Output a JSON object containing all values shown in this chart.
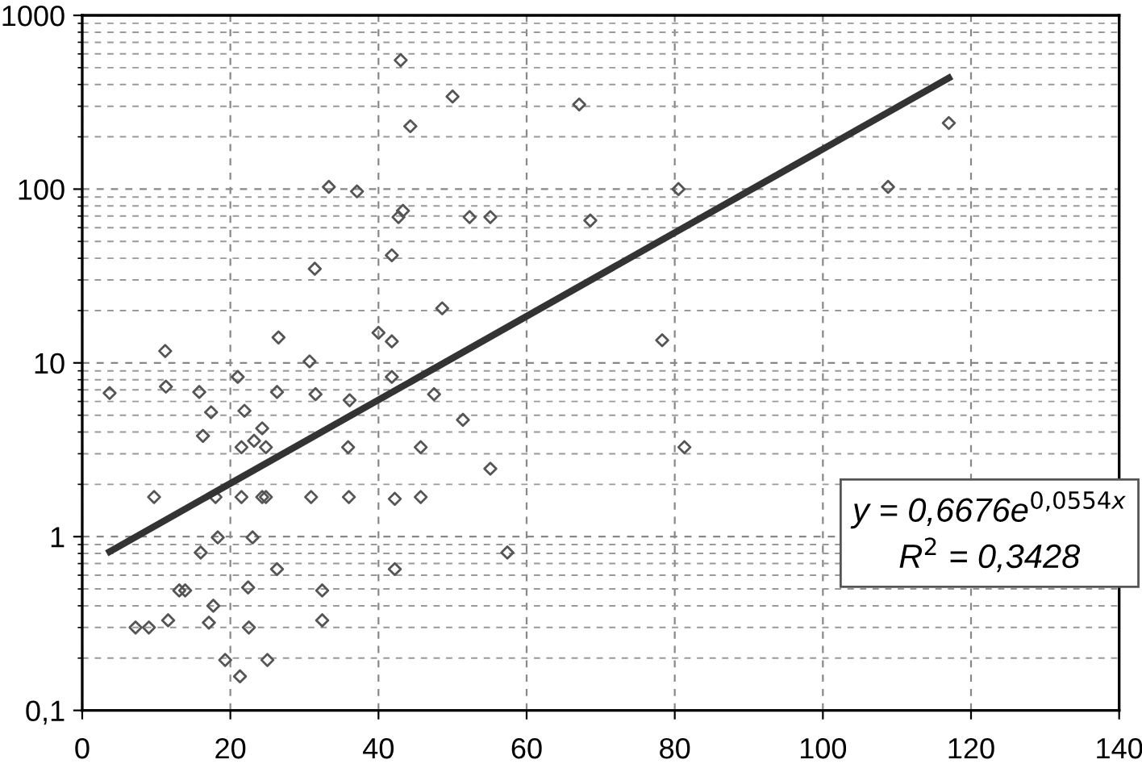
{
  "chart_data": {
    "type": "scatter",
    "xlim": [
      0,
      140
    ],
    "xticks": [
      0,
      20,
      40,
      60,
      80,
      100,
      120,
      140
    ],
    "ylim": [
      0.1,
      1000
    ],
    "yticks": [
      {
        "value": 0.1,
        "label": "0,1"
      },
      1,
      10,
      100,
      1000
    ],
    "log": "y",
    "grid": true,
    "annotations": [
      "y = 0,6676e$^{0,0554x}$",
      "R$^{2}$ = 0,3428"
    ],
    "series": [
      {
        "color": "#555555",
        "marker": "diamond",
        "x": [
          43.0,
          50.0,
          44.3,
          67.1,
          33.3,
          37.1,
          43.3,
          42.7,
          52.3,
          55.1,
          68.6,
          41.8,
          31.4,
          48.6,
          40.0,
          41.8,
          26.5,
          11.2,
          30.7,
          41.8,
          21.0,
          117.0,
          80.5,
          108.8,
          78.3,
          3.7,
          11.3,
          15.8,
          26.3,
          31.5,
          47.5,
          17.4,
          21.9,
          36.1,
          51.4,
          16.3,
          24.3,
          23.2,
          21.5,
          24.8,
          35.9,
          45.7,
          55.1,
          9.7,
          18.0,
          21.5,
          24.3,
          24.8,
          30.9,
          36.0,
          42.2,
          45.7,
          18.3,
          23.0,
          16.0,
          57.4,
          26.3,
          42.2,
          13.1,
          13.9,
          22.4,
          32.4,
          17.7,
          11.6,
          17.1,
          32.4,
          7.2,
          9.0,
          22.5,
          19.3,
          25.0,
          21.3,
          81.3
        ],
        "values": [
          552,
          341,
          230,
          307,
          103,
          97,
          75,
          69,
          69,
          69,
          66,
          41.6,
          34.8,
          20.6,
          14.9,
          13.3,
          14.0,
          11.7,
          10.2,
          8.3,
          8.3,
          240,
          100,
          103,
          13.5,
          6.7,
          7.3,
          6.8,
          6.8,
          6.6,
          6.6,
          5.2,
          5.3,
          6.1,
          4.7,
          3.8,
          4.2,
          3.56,
          3.27,
          3.27,
          3.27,
          3.27,
          2.46,
          1.69,
          1.69,
          1.69,
          1.69,
          1.69,
          1.69,
          1.69,
          1.65,
          1.69,
          0.99,
          0.99,
          0.81,
          0.81,
          0.65,
          0.65,
          0.49,
          0.49,
          0.51,
          0.49,
          0.4,
          0.33,
          0.32,
          0.33,
          0.3,
          0.3,
          0.3,
          0.195,
          0.195,
          0.157,
          3.27
        ]
      },
      {
        "type": "line",
        "color": "#333333",
        "line_style": "solid",
        "marker": "none",
        "x": [
          3.7,
          117.0
        ],
        "values": [
          0.82,
          436
        ]
      }
    ]
  }
}
